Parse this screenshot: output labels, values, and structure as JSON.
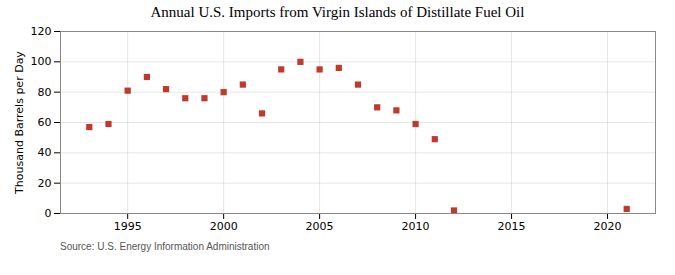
{
  "chart_data": {
    "type": "scatter",
    "title": "Annual U.S. Imports from Virgin Islands of Distillate Fuel Oil",
    "ylabel": "Thousand Barrels per Day",
    "annotation": "Source: U.S. Energy Information Administration",
    "x": [
      1993,
      1994,
      1995,
      1996,
      1997,
      1998,
      1999,
      2000,
      2001,
      2002,
      2003,
      2004,
      2005,
      2006,
      2007,
      2008,
      2009,
      2010,
      2011,
      2012,
      2021
    ],
    "values": [
      57,
      59,
      81,
      90,
      82,
      76,
      76,
      80,
      85,
      66,
      95,
      100,
      95,
      96,
      85,
      70,
      68,
      59,
      49,
      2,
      3
    ],
    "color": "#c0392b",
    "marker": "square",
    "xlim": [
      1991.5,
      2022.5
    ],
    "ylim": [
      0,
      120
    ],
    "xticks": [
      1995,
      2000,
      2005,
      2010,
      2015,
      2020
    ],
    "yticks": [
      0,
      20,
      40,
      60,
      80,
      100,
      120
    ],
    "grid": true
  }
}
